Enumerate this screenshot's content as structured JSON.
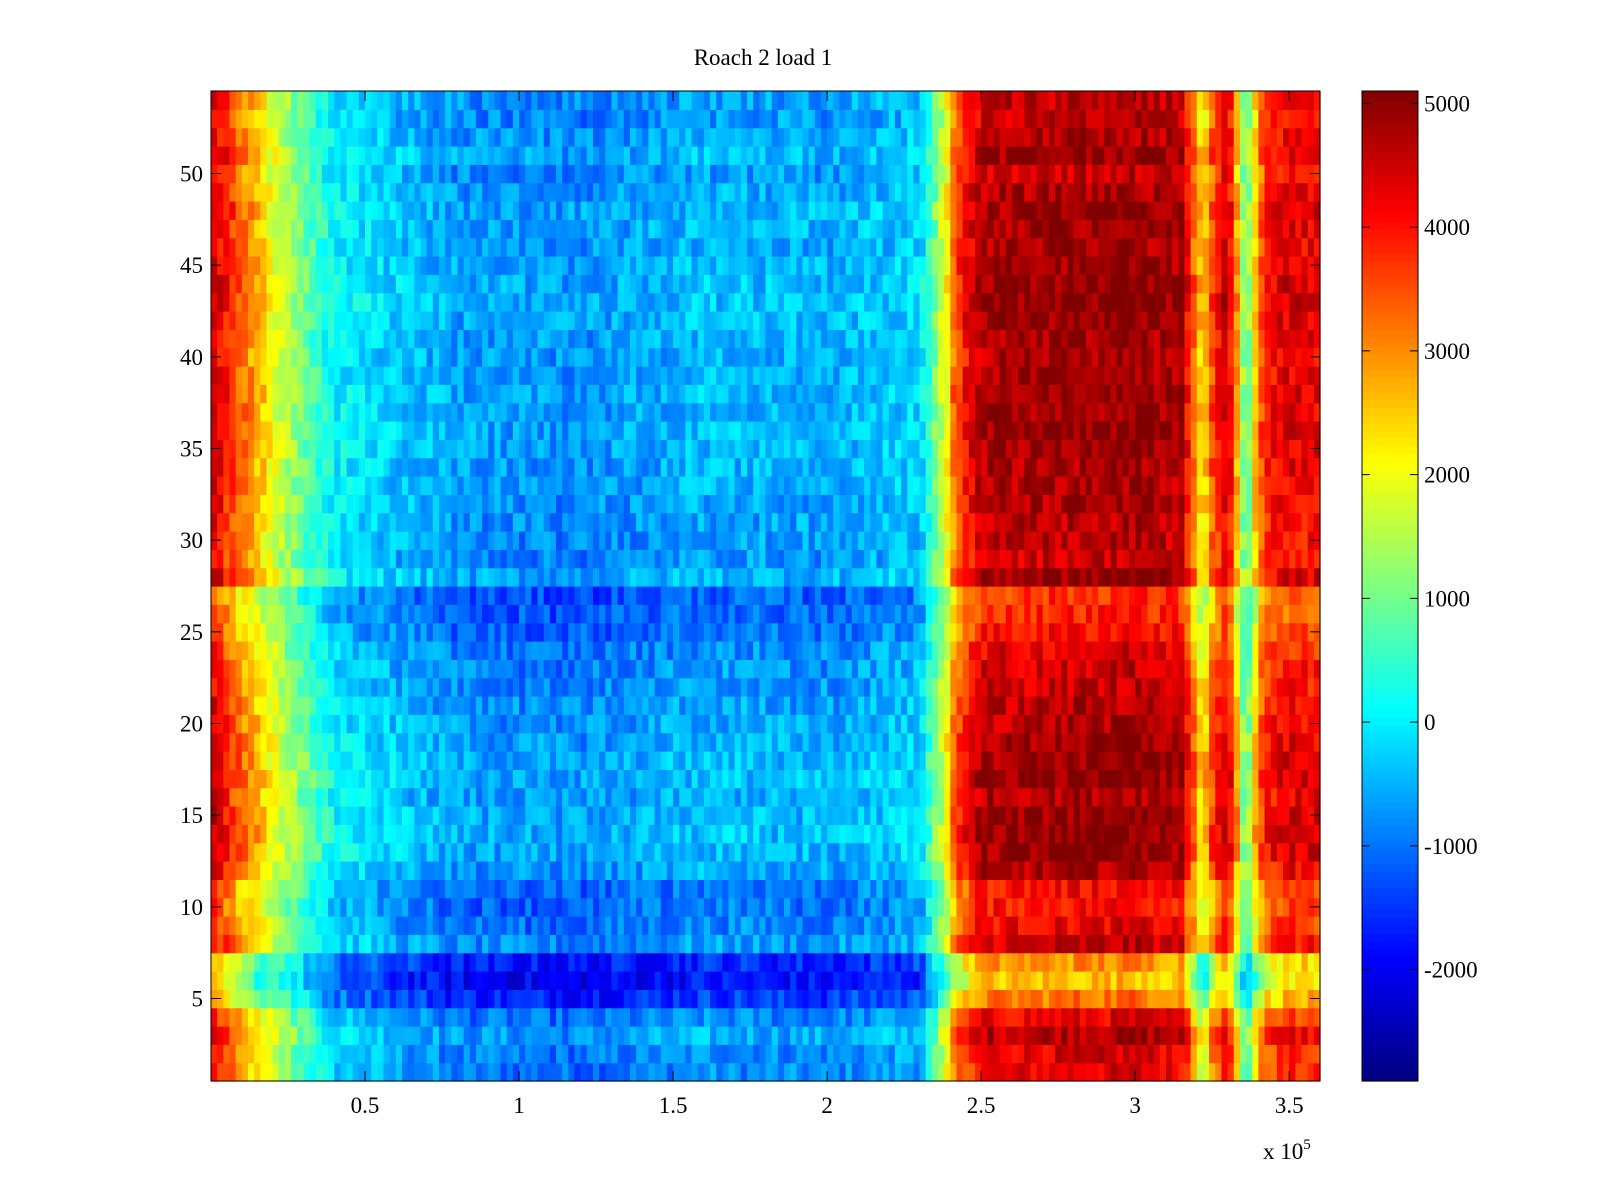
{
  "chart_data": {
    "type": "heatmap",
    "title": "Roach 2 load 1",
    "xlabel": "",
    "ylabel": "",
    "x_multiplier_label": "x 10",
    "x_multiplier_exponent": "5",
    "xlim": [
      0,
      3.6
    ],
    "ylim": [
      0.5,
      54.5
    ],
    "x_ticks": [
      0.5,
      1,
      1.5,
      2,
      2.5,
      3,
      3.5
    ],
    "x_tick_labels": [
      "0.5",
      "1",
      "1.5",
      "2",
      "2.5",
      "3",
      "3.5"
    ],
    "y_ticks": [
      5,
      10,
      15,
      20,
      25,
      30,
      35,
      40,
      45,
      50
    ],
    "y_tick_labels": [
      "5",
      "10",
      "15",
      "20",
      "25",
      "30",
      "35",
      "40",
      "45",
      "50"
    ],
    "rows": 54,
    "colormap": "jet",
    "colorbar": {
      "range": [
        -2900,
        5100
      ],
      "ticks": [
        -2000,
        -1000,
        0,
        1000,
        2000,
        3000,
        4000,
        5000
      ],
      "tick_labels": [
        "-2000",
        "-1000",
        "0",
        "1000",
        "2000",
        "3000",
        "4000",
        "5000"
      ]
    },
    "bands_note": "Value profile along x (in units of 10^5): high at x≈0, low plateau from ~0.3 to ~2.35, sharp rise at ~2.4, high plateau to ~3.2, narrow dips near 3.22 and 3.36.",
    "value_profile": {
      "x": [
        0.0,
        0.1,
        0.25,
        0.4,
        0.8,
        1.2,
        1.6,
        2.0,
        2.3,
        2.38,
        2.42,
        2.5,
        3.0,
        3.15,
        3.2,
        3.22,
        3.24,
        3.3,
        3.34,
        3.36,
        3.38,
        3.42,
        3.5,
        3.6
      ],
      "v": [
        4200,
        2800,
        1200,
        -200,
        -900,
        -1000,
        -700,
        -800,
        -500,
        1500,
        3200,
        4300,
        4500,
        4300,
        2600,
        1500,
        2900,
        4200,
        1800,
        200,
        1800,
        3500,
        3900,
        3800
      ]
    },
    "row_offsets": {
      "rows": [
        1,
        2,
        3,
        4,
        5,
        6,
        7,
        8,
        9,
        10,
        11,
        12,
        13,
        14,
        15,
        16,
        17,
        18,
        19,
        20,
        21,
        22,
        23,
        24,
        25,
        26,
        27,
        28,
        29,
        30,
        31,
        32,
        33,
        34,
        35,
        36,
        37,
        38,
        39,
        40,
        41,
        42,
        43,
        44,
        45,
        46,
        47,
        48,
        49,
        50,
        51,
        52,
        53,
        54
      ],
      "delta": [
        -200,
        -100,
        600,
        -300,
        -2000,
        -3000,
        -2400,
        200,
        -300,
        -600,
        -500,
        500,
        900,
        1000,
        900,
        600,
        1000,
        900,
        700,
        500,
        400,
        200,
        100,
        -100,
        -600,
        -900,
        -1100,
        900,
        200,
        300,
        400,
        500,
        600,
        700,
        800,
        900,
        800,
        900,
        700,
        600,
        700,
        900,
        1000,
        1000,
        800,
        600,
        800,
        900,
        600,
        200,
        900,
        500,
        200,
        400
      ]
    }
  }
}
